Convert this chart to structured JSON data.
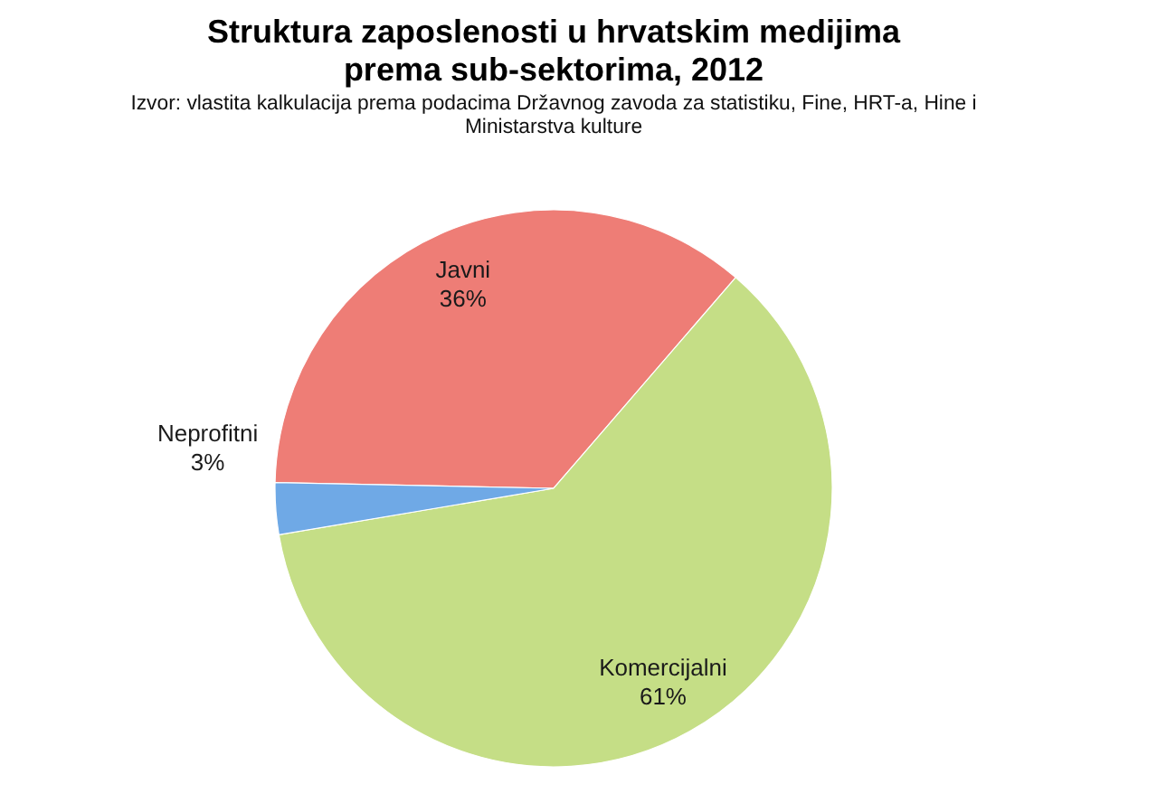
{
  "chart_data": {
    "type": "pie",
    "title": "Struktura zaposlenosti u hrvatskim medijima prema sub-sektorima, 2012",
    "annotations": [
      "Izvor: vlastita kalkulacija prema podacima Državnog zavoda za statistiku, Fine, HRT-a, Hine i Ministarstva kulture"
    ],
    "categories": [
      "Javni",
      "Komercijalni",
      "Neprofitni"
    ],
    "values": [
      36,
      61,
      3
    ],
    "colors": [
      "#ee7d76",
      "#c5de86",
      "#6fa9e6"
    ],
    "value_labels": [
      "36%",
      "61%",
      "3%"
    ],
    "legend": false
  }
}
